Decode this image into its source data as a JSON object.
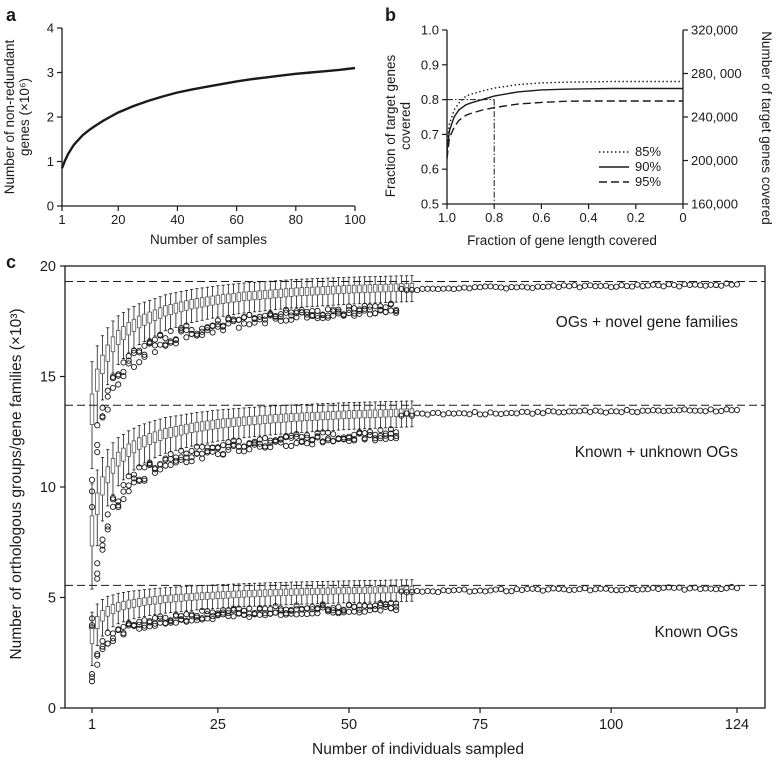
{
  "panels": {
    "a": {
      "letter": "a"
    },
    "b": {
      "letter": "b"
    },
    "c": {
      "letter": "c"
    }
  },
  "chart_data": [
    {
      "panel": "a",
      "type": "line",
      "xlabel": "Number of samples",
      "ylabel_line1": "Number of non-redundant",
      "ylabel_line2": "genes (×10⁶)",
      "xlim": [
        1,
        100
      ],
      "ylim": [
        0,
        4
      ],
      "xticks": [
        1,
        20,
        40,
        60,
        80,
        100
      ],
      "yticks": [
        0,
        1,
        2,
        3,
        4
      ],
      "series": [
        {
          "x": [
            1,
            2,
            3,
            4,
            5,
            6,
            8,
            10,
            12,
            15,
            20,
            25,
            30,
            35,
            40,
            45,
            50,
            55,
            60,
            65,
            70,
            75,
            80,
            85,
            90,
            95,
            100
          ],
          "y": [
            0.85,
            1.02,
            1.16,
            1.27,
            1.37,
            1.45,
            1.59,
            1.7,
            1.79,
            1.92,
            2.1,
            2.24,
            2.36,
            2.46,
            2.55,
            2.62,
            2.68,
            2.74,
            2.8,
            2.85,
            2.89,
            2.93,
            2.97,
            3.0,
            3.03,
            3.06,
            3.1
          ]
        }
      ]
    },
    {
      "panel": "b",
      "type": "line",
      "xlabel": "Fraction of gene length covered",
      "ylabel_left_line1": "Fraction of target genes",
      "ylabel_left_line2": "covered",
      "ylabel_right": "Number of target genes covered",
      "xlim": [
        1.0,
        0
      ],
      "ylim": [
        0.5,
        1.0
      ],
      "ylim_right": [
        160000,
        320000
      ],
      "xticks": [
        "1.0",
        "0.8",
        "0.6",
        "0.4",
        "0.2",
        "0"
      ],
      "yticks": [
        "0.5",
        "0.6",
        "0.7",
        "0.8",
        "0.9",
        "1.0"
      ],
      "yticks_right": [
        "160,000",
        "200,000",
        "240,000",
        "280, 000",
        "320,000"
      ],
      "reference_point": {
        "x": 0.8,
        "y": 0.8
      },
      "legend": [
        "85%",
        "90%",
        "95%"
      ],
      "legend_position": "lower-right",
      "series": [
        {
          "name": "85%",
          "style": "dotted",
          "x": [
            1.0,
            0.99,
            0.97,
            0.95,
            0.92,
            0.9,
            0.85,
            0.8,
            0.7,
            0.6,
            0.5,
            0.4,
            0.3,
            0.2,
            0.1,
            0.0
          ],
          "y": [
            0.67,
            0.73,
            0.77,
            0.79,
            0.81,
            0.815,
            0.825,
            0.833,
            0.843,
            0.848,
            0.85,
            0.851,
            0.852,
            0.852,
            0.852,
            0.852
          ]
        },
        {
          "name": "90%",
          "style": "solid",
          "x": [
            1.0,
            0.99,
            0.97,
            0.95,
            0.92,
            0.9,
            0.85,
            0.8,
            0.7,
            0.6,
            0.5,
            0.4,
            0.3,
            0.2,
            0.1,
            0.0
          ],
          "y": [
            0.65,
            0.71,
            0.75,
            0.77,
            0.785,
            0.79,
            0.8,
            0.81,
            0.822,
            0.828,
            0.83,
            0.831,
            0.832,
            0.832,
            0.832,
            0.832
          ]
        },
        {
          "name": "95%",
          "style": "dashed",
          "x": [
            1.0,
            0.99,
            0.97,
            0.95,
            0.92,
            0.9,
            0.85,
            0.8,
            0.7,
            0.6,
            0.5,
            0.4,
            0.3,
            0.2,
            0.1,
            0.0
          ],
          "y": [
            0.63,
            0.69,
            0.72,
            0.74,
            0.755,
            0.76,
            0.77,
            0.777,
            0.787,
            0.792,
            0.795,
            0.796,
            0.796,
            0.796,
            0.796,
            0.796
          ]
        }
      ]
    },
    {
      "panel": "c",
      "type": "box",
      "xlabel": "Number of individuals sampled",
      "ylabel": "Number of orthologous groups/gene families (×10³)",
      "xlim": [
        1,
        124
      ],
      "ylim": [
        0,
        20
      ],
      "xticks": [
        1,
        25,
        50,
        75,
        100,
        124
      ],
      "yticks": [
        0,
        5,
        10,
        15,
        20
      ],
      "series": [
        {
          "name": "OGs + novel gene families",
          "asymptote": 19.3,
          "medians": {
            "x": [
              1,
              2,
              3,
              4,
              5,
              6,
              8,
              10,
              12,
              15,
              20,
              25,
              30,
              35,
              40,
              50,
              60,
              70,
              80,
              90,
              100,
              110,
              124
            ],
            "y": [
              13.6,
              14.9,
              15.6,
              16.1,
              16.5,
              16.8,
              17.2,
              17.5,
              17.7,
              18.0,
              18.3,
              18.5,
              18.65,
              18.75,
              18.85,
              18.97,
              19.05,
              19.1,
              19.15,
              19.18,
              19.2,
              19.23,
              19.28
            ]
          }
        },
        {
          "name": "Known + unknown OGs",
          "asymptote": 13.7,
          "medians": {
            "x": [
              1,
              2,
              3,
              4,
              5,
              6,
              8,
              10,
              12,
              15,
              20,
              25,
              30,
              35,
              40,
              50,
              60,
              70,
              80,
              90,
              100,
              110,
              124
            ],
            "y": [
              8.1,
              9.3,
              10.1,
              10.6,
              11.0,
              11.3,
              11.7,
              12.0,
              12.2,
              12.45,
              12.7,
              12.88,
              13.0,
              13.1,
              13.18,
              13.3,
              13.38,
              13.43,
              13.47,
              13.5,
              13.53,
              13.55,
              13.6
            ]
          }
        },
        {
          "name": "Known OGs",
          "asymptote": 5.55,
          "medians": {
            "x": [
              1,
              2,
              3,
              4,
              5,
              6,
              8,
              10,
              12,
              15,
              20,
              25,
              30,
              35,
              40,
              50,
              60,
              70,
              80,
              90,
              100,
              110,
              124
            ],
            "y": [
              3.3,
              3.9,
              4.2,
              4.4,
              4.5,
              4.6,
              4.72,
              4.8,
              4.87,
              4.95,
              5.05,
              5.12,
              5.18,
              5.23,
              5.27,
              5.33,
              5.38,
              5.42,
              5.45,
              5.47,
              5.49,
              5.51,
              5.53
            ]
          }
        }
      ]
    }
  ]
}
